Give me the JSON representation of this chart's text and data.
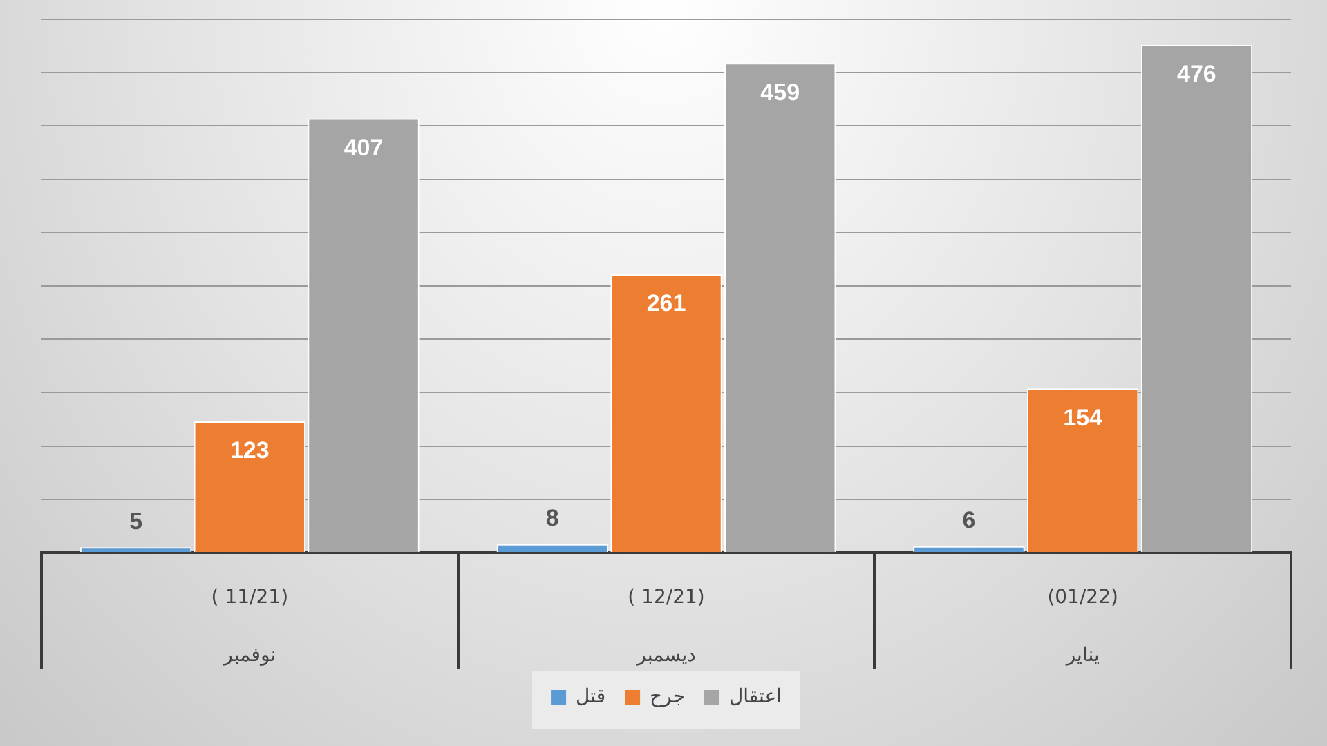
{
  "chart_data": {
    "type": "bar",
    "categories": [
      "( 11/21)\nنوفمبر",
      "( 12/21)\nديسمبر",
      "(01/22)\nيناير"
    ],
    "series": [
      {
        "name": "قتل",
        "color": "#5b9bd5",
        "values": [
          5,
          8,
          6
        ]
      },
      {
        "name": "جرح",
        "color": "#ed7d31",
        "values": [
          123,
          261,
          154
        ]
      },
      {
        "name": "اعتقال",
        "color": "#a5a5a5",
        "values": [
          407,
          459,
          476
        ]
      }
    ],
    "tick_labels": "x",
    "grid": "y",
    "legend": "bottom",
    "data_labels": true
  }
}
